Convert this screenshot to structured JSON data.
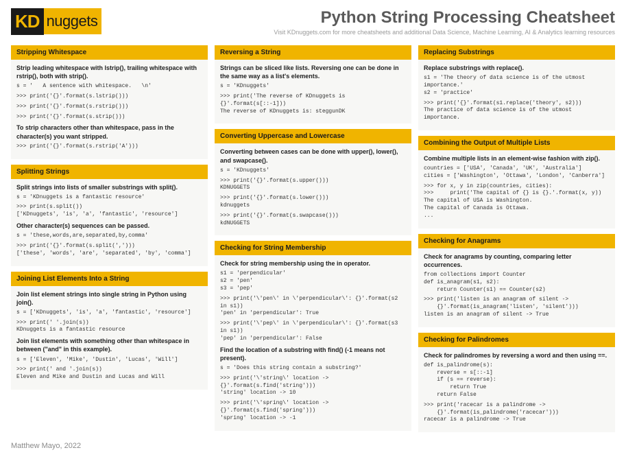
{
  "brand": {
    "kd": "KD",
    "nuggets": "nuggets"
  },
  "title": "Python String Processing Cheatsheet",
  "subtitle": "Visit KDnuggets.com for more cheatsheets and additional Data Science, Machine Learning, AI & Analytics learning resources",
  "footer": "Matthew Mayo, 2022",
  "colors": {
    "accent": "#f0b400",
    "dark": "#1a1a1a",
    "panel": "#f7f7f5",
    "title_text": "#5a5a5a",
    "subtle": "#9a9a9a"
  },
  "col1": {
    "s1": {
      "title": "Stripping Whitespace",
      "d1": "Strip leading whitespace with lstrip(), trailing whitespace with rstrip(), both with strip().",
      "c1": "s = '   A sentence with whitespace.   \\n'",
      "c2": ">>> print('{}'.format(s.lstrip()))",
      "c3": ">>> print('{}'.format(s.rstrip()))",
      "c4": ">>> print('{}'.format(s.strip()))",
      "d2": "To strip characters other than whitespace, pass in the character(s) you want stripped.",
      "c5": ">>> print('{}'.format(s.rstrip('A')))"
    },
    "s2": {
      "title": "Splitting Strings",
      "d1": "Split strings into lists of smaller substrings with split().",
      "c1": "s = 'KDnuggets is a fantastic resource'",
      "c2": ">>> print(s.split())\n['KDnuggets', 'is', 'a', 'fantastic', 'resource']",
      "d2": "Other character(s) sequences can be passed.",
      "c3": "s = 'these,words,are,separated,by,comma'",
      "c4": ">>> print('{}'.format(s.split(',')))\n['these', 'words', 'are', 'separated', 'by', 'comma']"
    },
    "s3": {
      "title": "Joining List Elements Into a String",
      "d1": "Join list element strings into single string in Python using join().",
      "c1": "s = ['KDnuggets', 'is', 'a', 'fantastic', 'resource']",
      "c2": ">>> print(' '.join(s))\nKDnuggets is a fantastic resource",
      "d2": "Join list elements with something other than whitespace in between (\"and\" in this example).",
      "c3": "s = ['Eleven', 'Mike', 'Dustin', 'Lucas', 'Will']",
      "c4": ">>> print(' and '.join(s))\nEleven and Mike and Dustin and Lucas and Will"
    }
  },
  "col2": {
    "s1": {
      "title": "Reversing a String",
      "d1": "Strings can be sliced like lists. Reversing one can be done in the same way as a list's elements.",
      "c1": "s = 'KDnuggets'",
      "c2": ">>> print('The reverse of KDnuggets is {}'.format(s[::-1]))\nThe reverse of KDnuggets is: steggunDK"
    },
    "s2": {
      "title": "Converting Uppercase and Lowercase",
      "d1": "Converting between cases can be done with upper(), lower(), and swapcase().",
      "c1": "s = 'KDnuggets'",
      "c2": ">>> print('{}'.format(s.upper()))\nKDNUGGETS",
      "c3": ">>> print('{}'.format(s.lower()))\nkdnuggets",
      "c4": ">>> print('{}'.format(s.swapcase()))\nkdNUGGETS"
    },
    "s3": {
      "title": "Checking for String Membership",
      "d1": "Check for string membership using the in operator.",
      "c1": "s1 = 'perpendicular'\ns2 = 'pen'\ns3 = 'pep'",
      "c2": ">>> print('\\'pen\\' in \\'perpendicular\\': {}'.format(s2 in s1))\n'pen' in 'perpendicular': True",
      "c3": ">>> print('\\'pep\\' in \\'perpendicular\\': {}'.format(s3 in s1))\n'pep' in 'perpendicular': False",
      "d2": "Find the location of a substring with find() (-1 means not present).",
      "c4": "s = 'Does this string contain a substring?'",
      "c5": ">>> print('\\'string\\' location -> {}'.format(s.find('string')))\n'string' location -> 10",
      "c6": ">>> print('\\'spring\\' location -> {}'.format(s.find('spring')))\n'spring' location -> -1"
    }
  },
  "col3": {
    "s1": {
      "title": "Replacing Substrings",
      "d1": "Replace substrings with replace().",
      "c1": "s1 = 'The theory of data science is of the utmost importance.'\ns2 = 'practice'",
      "c2": ">>> print('{}'.format(s1.replace('theory', s2)))\nThe practice of data science is of the utmost importance."
    },
    "s2": {
      "title": "Combining the Output of Multiple Lists",
      "d1": "Combine multiple lists in an element-wise fashion with zip().",
      "c1": "countries = ['USA', 'Canada', 'UK', 'Australia']\ncities = ['Washington', 'Ottawa', 'London', 'Canberra']",
      "c2": ">>> for x, y in zip(countries, cities):\n>>>     print('The capital of {} is {}.'.format(x, y))\nThe capital of USA is Washington.\nThe capital of Canada is Ottawa.\n..."
    },
    "s3": {
      "title": "Checking for Anagrams",
      "d1": "Check for  anagrams by counting,  comparing  letter occurrences.",
      "c1": "from collections import Counter\ndef is_anagram(s1, s2):\n    return Counter(s1) == Counter(s2)",
      "c2": ">>> print('listen is an anagram of silent ->\n    {}'.format(is_anagram('listen', 'silent')))\nlisten is an anagram of silent -> True"
    },
    "s4": {
      "title": "Checking for Palindromes",
      "d1": "Check for palindromes by reversing a word and then using ==.",
      "c1": "def is_palindrome(s):\n    reverse = s[::-1]\n    if (s == reverse):\n        return True\n    return False",
      "c2": ">>> print('racecar is a palindrome ->\n    {}'.format(is_palindrome('racecar')))\nracecar is a palindrome -> True"
    }
  }
}
